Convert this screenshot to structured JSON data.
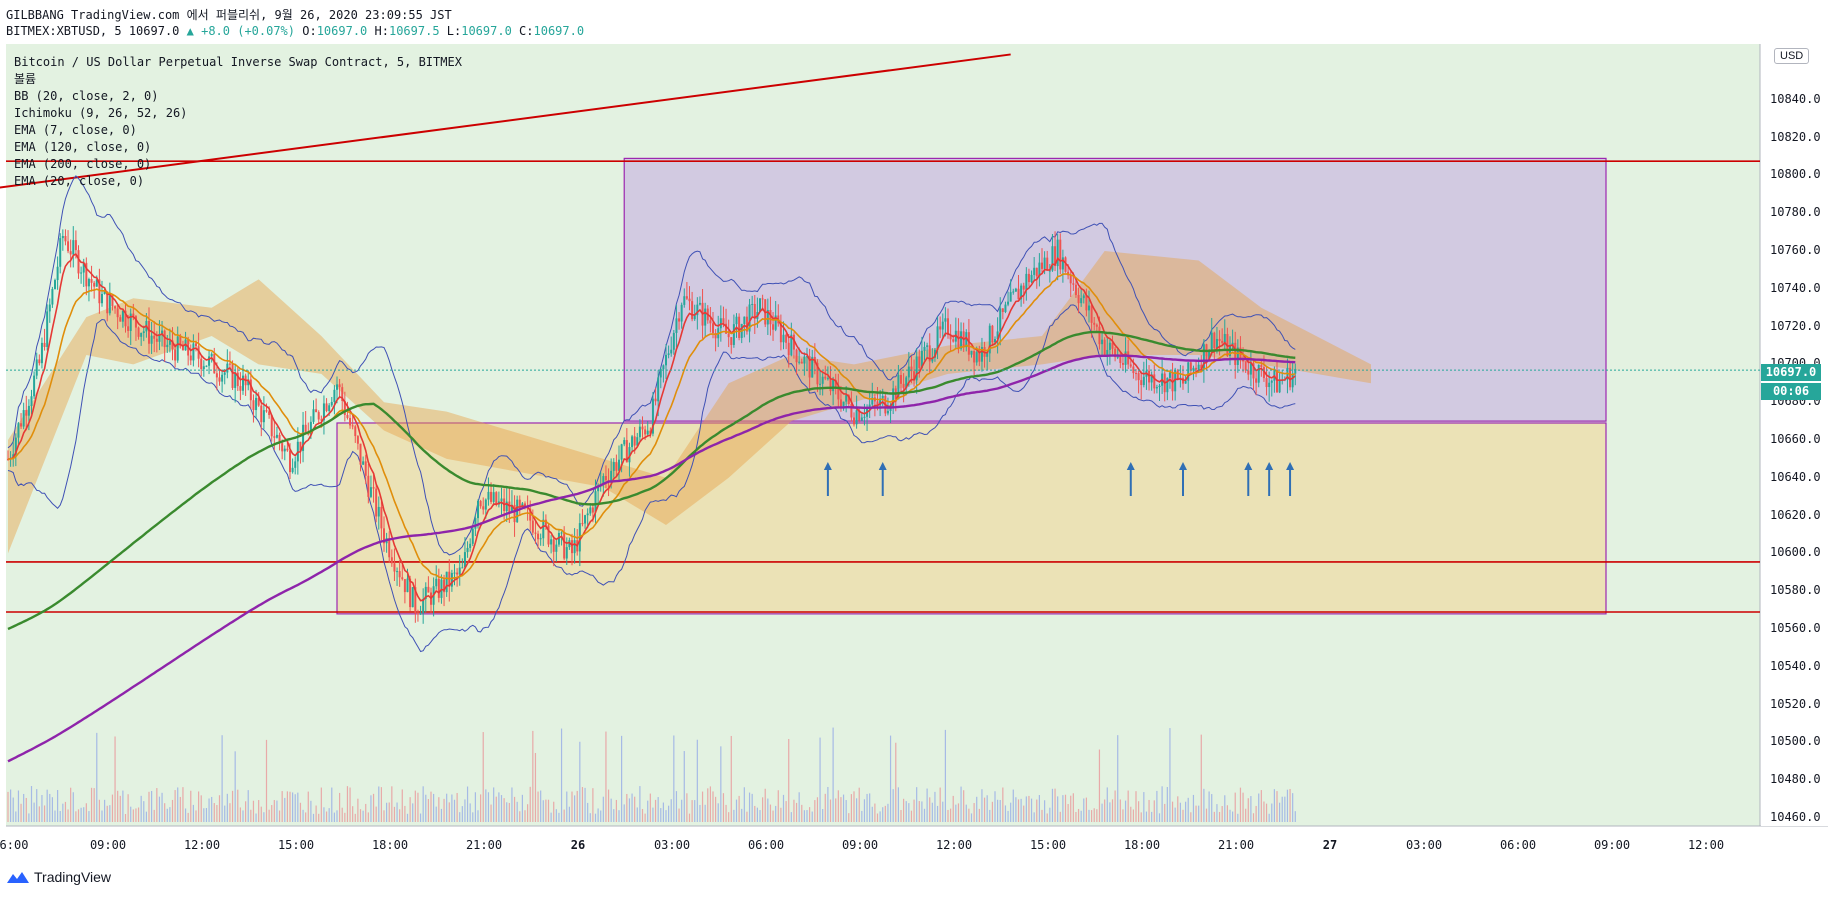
{
  "header": {
    "line1": "GILBBANG TradingView.com 에서 퍼블리쉬, 9월 26, 2020 23:09:55 JST",
    "symbol": "BITMEX:XBTUSD, 5",
    "last": "10697.0",
    "change": "▲ +8.0 (+0.07%)",
    "o_label": "O:",
    "o": "10697.0",
    "h_label": "H:",
    "h": "10697.5",
    "l_label": "L:",
    "l": "10697.0",
    "c_label": "C:",
    "c": "10697.0"
  },
  "legend": [
    "Bitcoin / US Dollar Perpetual Inverse Swap Contract, 5, BITMEX",
    "볼륨",
    "BB (20, close, 2, 0)",
    "Ichimoku (9, 26, 52, 26)",
    "EMA (7, close, 0)",
    "EMA (120, close, 0)",
    "EMA (200, close, 0)",
    "EMA (20, close, 0)"
  ],
  "price_axis": {
    "currency": "USD",
    "current_price": "10697.0",
    "countdown": "00:06",
    "labels": [
      "10840.0",
      "10820.0",
      "10800.0",
      "10780.0",
      "10760.0",
      "10740.0",
      "10720.0",
      "10700.0",
      "10680.0",
      "10660.0",
      "10640.0",
      "10620.0",
      "10600.0",
      "10580.0",
      "10560.0",
      "10540.0",
      "10520.0",
      "10500.0",
      "10480.0",
      "10460.0"
    ]
  },
  "time_axis": [
    {
      "label": "6:00",
      "bold": false
    },
    {
      "label": "09:00",
      "bold": false
    },
    {
      "label": "12:00",
      "bold": false
    },
    {
      "label": "15:00",
      "bold": false
    },
    {
      "label": "18:00",
      "bold": false
    },
    {
      "label": "21:00",
      "bold": false
    },
    {
      "label": "26",
      "bold": true
    },
    {
      "label": "03:00",
      "bold": false
    },
    {
      "label": "06:00",
      "bold": false
    },
    {
      "label": "09:00",
      "bold": false
    },
    {
      "label": "12:00",
      "bold": false
    },
    {
      "label": "15:00",
      "bold": false
    },
    {
      "label": "18:00",
      "bold": false
    },
    {
      "label": "21:00",
      "bold": false
    },
    {
      "label": "27",
      "bold": true
    },
    {
      "label": "03:00",
      "bold": false
    },
    {
      "label": "06:00",
      "bold": false
    },
    {
      "label": "09:00",
      "bold": false
    },
    {
      "label": "12:00",
      "bold": false
    }
  ],
  "branding": "TradingView",
  "colors": {
    "background": "#e3f2e1",
    "bull": "#26a69a",
    "bear": "#ef5350",
    "hline": "#cc0000",
    "purple_box": "#c9b3e0",
    "yellow_box": "#f0d79a",
    "ema7": "#e53935",
    "ema20": "#e08e0b",
    "ema120": "#3a8a2e",
    "ema200": "#8e24aa",
    "bb": "#3f51b5",
    "arrow": "#2f6fb5"
  },
  "chart_data": {
    "type": "candlestick",
    "ylim": [
      10455,
      10864
    ],
    "horizontal_lines": [
      10807.5,
      10595.5,
      10569
    ],
    "trendline": {
      "from": {
        "x": "09-25 05:00",
        "y": 10792
      },
      "to": {
        "x": "09-26 14:00",
        "y": 10864
      }
    },
    "boxes": [
      {
        "name": "purple",
        "x_from": "09-26 01:40",
        "x_to": "09-27 09:00",
        "y_from": 10670,
        "y_to": 10809
      },
      {
        "name": "yellow",
        "x_from": "09-25 16:30",
        "x_to": "09-27 09:00",
        "y_from": 10568,
        "y_to": 10669
      }
    ],
    "arrows_at": [
      "09-26 08:10",
      "09-26 09:55",
      "09-26 17:50",
      "09-26 19:30",
      "09-26 21:35",
      "09-26 22:15",
      "09-26 22:55"
    ],
    "ohlc_key_points": [
      {
        "t": "09-25 06:00",
        "close": 10650
      },
      {
        "t": "09-25 07:00",
        "close": 10700
      },
      {
        "t": "09-25 07:45",
        "close": 10768
      },
      {
        "t": "09-25 09:00",
        "close": 10735
      },
      {
        "t": "09-25 11:00",
        "close": 10710
      },
      {
        "t": "09-25 12:00",
        "close": 10705
      },
      {
        "t": "09-25 13:30",
        "close": 10690
      },
      {
        "t": "09-25 15:00",
        "close": 10650
      },
      {
        "t": "09-25 16:30",
        "close": 10690
      },
      {
        "t": "09-25 18:00",
        "close": 10610
      },
      {
        "t": "09-25 19:00",
        "close": 10572
      },
      {
        "t": "09-25 20:30",
        "close": 10590
      },
      {
        "t": "09-25 21:00",
        "close": 10630
      },
      {
        "t": "09-25 22:30",
        "close": 10620
      },
      {
        "t": "09-26 00:00",
        "close": 10600
      },
      {
        "t": "09-26 01:00",
        "close": 10640
      },
      {
        "t": "09-26 02:30",
        "close": 10670
      },
      {
        "t": "09-26 03:30",
        "close": 10735
      },
      {
        "t": "09-26 05:00",
        "close": 10715
      },
      {
        "t": "09-26 06:00",
        "close": 10730
      },
      {
        "t": "09-26 07:30",
        "close": 10700
      },
      {
        "t": "09-26 09:00",
        "close": 10675
      },
      {
        "t": "09-26 10:00",
        "close": 10680
      },
      {
        "t": "09-26 12:00",
        "close": 10720
      },
      {
        "t": "09-26 13:00",
        "close": 10705
      },
      {
        "t": "09-26 14:30",
        "close": 10745
      },
      {
        "t": "09-26 15:30",
        "close": 10760
      },
      {
        "t": "09-26 17:00",
        "close": 10710
      },
      {
        "t": "09-26 18:00",
        "close": 10695
      },
      {
        "t": "09-26 19:30",
        "close": 10690
      },
      {
        "t": "09-26 20:30",
        "close": 10715
      },
      {
        "t": "09-26 21:30",
        "close": 10700
      },
      {
        "t": "09-26 22:30",
        "close": 10690
      },
      {
        "t": "09-26 23:09",
        "close": 10697
      }
    ]
  }
}
